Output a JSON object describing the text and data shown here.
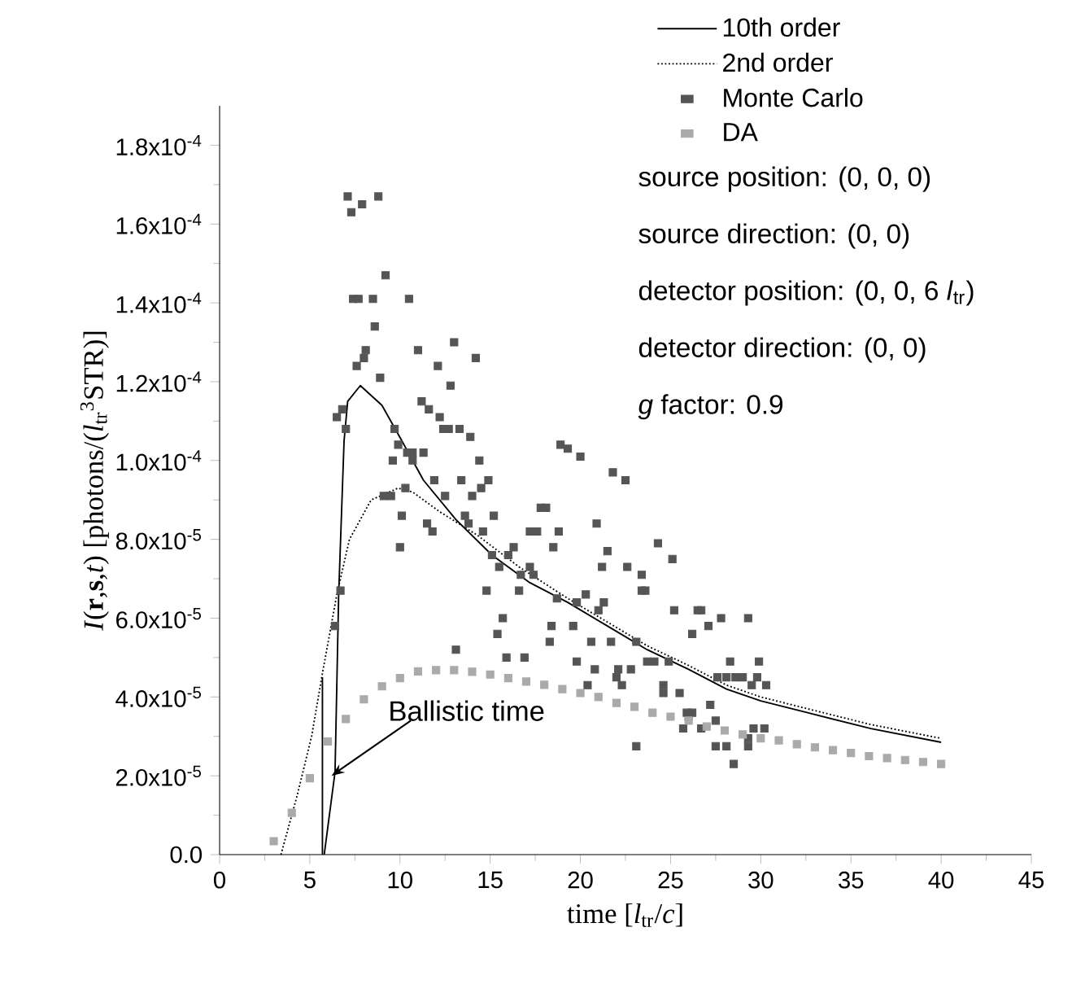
{
  "chart_data": {
    "type": "line",
    "xlabel": "time      [*l*$_{tr}$/*c*]",
    "ylabel": "*I*(**r**,**s**,*t*)   [photons/(*l*$_{tr}$$^{3}$STR)]",
    "xlim": [
      0,
      45
    ],
    "xticks": [
      0,
      5,
      10,
      15,
      20,
      25,
      30,
      35,
      40,
      45
    ],
    "ylim": [
      0,
      0.00019
    ],
    "yticks": [
      {
        "value": 0,
        "label": "0.0"
      },
      {
        "value": 2e-05,
        "label": "2.0x10$^{-5}$"
      },
      {
        "value": 4e-05,
        "label": "4.0x10$^{-5}$"
      },
      {
        "value": 6e-05,
        "label": "6.0x10$^{-5}$"
      },
      {
        "value": 8e-05,
        "label": "8.0x10$^{-5}$"
      },
      {
        "value": 0.0001,
        "label": "1.0x10$^{-4}$"
      },
      {
        "value": 0.00012,
        "label": "1.2x10$^{-4}$"
      },
      {
        "value": 0.00014,
        "label": "1.4x10$^{-4}$"
      },
      {
        "value": 0.00016,
        "label": "1.6x10$^{-4}$"
      },
      {
        "value": 0.00018,
        "label": "1.8x10$^{-4}$"
      }
    ],
    "legend": "top right",
    "series": [
      {
        "name": "10th order",
        "line_style": "solid",
        "color": "#000000",
        "x": [
          5.8,
          6.4,
          6.6,
          6.9,
          7.1,
          7.8,
          9.0,
          10.1,
          11.3,
          13.1,
          15.1,
          17.2,
          19.3,
          21.5,
          23.7,
          26,
          28.1,
          30,
          32.6,
          36.1,
          40
        ],
        "values": [
          0,
          2.1e-05,
          6.6e-05,
          0.000105,
          0.000115,
          0.000119,
          0.000114,
          0.000105,
          9.5e-05,
          8.5e-05,
          7.6e-05,
          6.9e-05,
          6.4e-05,
          5.8e-05,
          5.2e-05,
          4.7e-05,
          4.2e-05,
          3.9e-05,
          3.6e-05,
          3.2e-05,
          2.85e-05
        ]
      },
      {
        "name": "2nd order",
        "line_style": "dotted",
        "color": "#000000",
        "x": [
          3.4,
          4.3,
          5.1,
          5.7,
          6.5,
          7.2,
          8.4,
          9.9,
          10.7,
          12.2,
          14.3,
          16.6,
          19.3,
          21.5,
          23.7,
          26,
          28.1,
          30,
          32.6,
          36.1,
          40
        ],
        "values": [
          0,
          1.5e-05,
          3e-05,
          4.6e-05,
          6.6e-05,
          8e-05,
          9e-05,
          9.3e-05,
          9.2e-05,
          8.7e-05,
          8.1e-05,
          7.3e-05,
          6.5e-05,
          5.9e-05,
          5.3e-05,
          4.8e-05,
          4.3e-05,
          4e-05,
          3.7e-05,
          3.3e-05,
          2.95e-05
        ]
      },
      {
        "name": "Monte Carlo",
        "type": "scatter",
        "marker": "square",
        "color": "#555555",
        "x": [
          7.1,
          7.3,
          7.9,
          8.8,
          9.2,
          7.4,
          7.7,
          8.5,
          10.5,
          8.6,
          8.1,
          8.0,
          7.6,
          11.0,
          13.0,
          14.2,
          12.1,
          8.9,
          12.8,
          6.5,
          6.8,
          7.0,
          11.2,
          11.6,
          12.2,
          12.4,
          12.7,
          13.3,
          13.9,
          9.7,
          9.9,
          10.7,
          10.4,
          11.3,
          9.6,
          10.7,
          14.4,
          11.9,
          13.4,
          14.9,
          14.5,
          9.1,
          9.5,
          10.3,
          12.5,
          14.0,
          10.1,
          13.6,
          15.2,
          13.8,
          11.5,
          11.8,
          14.6,
          10.0,
          15.1,
          15.5,
          16.0,
          16.3,
          16.7,
          17.2,
          17.4,
          17.8,
          18.1,
          17.2,
          17.6,
          18.8,
          18.5,
          18.9,
          14.8,
          6.7,
          16.6,
          6.4,
          15.7,
          15.4,
          18.4,
          18.3,
          13.1,
          15.9,
          16.9,
          18.7,
          19.3,
          20.0,
          21.8,
          22.5,
          20.9,
          21.5,
          24.3,
          25.1,
          21.2,
          22.6,
          23.4,
          23.4,
          23.6,
          19.8,
          20.3,
          21.3,
          21.0,
          25.2,
          26.5,
          26.7,
          27.8,
          29.3,
          27.1,
          26.2,
          19.6,
          20.6,
          21.7,
          19.8,
          20.8,
          22.1,
          22.8,
          22.0,
          22.3,
          20.4,
          23.1,
          23.7,
          24.1,
          24.9,
          28.3,
          29.9,
          27.6,
          28.1,
          28.6,
          29.0,
          29.8,
          29.5,
          30.3,
          27.2,
          24.6,
          24.6,
          25.5,
          25.9,
          26.2,
          26.0,
          25.7,
          26.7,
          27.5,
          29.6,
          30.2,
          29.3,
          27.5,
          28.1,
          29.3,
          28.5,
          23.1
        ],
        "values": [
          0.000167,
          0.000163,
          0.000165,
          0.000167,
          0.000147,
          0.000141,
          0.000141,
          0.000141,
          0.000141,
          0.000134,
          0.000128,
          0.000126,
          0.000124,
          0.000128,
          0.00013,
          0.000126,
          0.000124,
          0.000121,
          0.000119,
          0.000111,
          0.000113,
          0.000108,
          0.000115,
          0.000113,
          0.000111,
          0.000108,
          0.000108,
          0.000108,
          0.000106,
          0.000108,
          0.000104,
          0.000102,
          0.000102,
          0.000102,
          0.0001,
          0.0001,
          0.0001,
          9.5e-05,
          9.5e-05,
          9.5e-05,
          9.3e-05,
          9.1e-05,
          9.1e-05,
          9.3e-05,
          9.1e-05,
          9.1e-05,
          8.6e-05,
          8.6e-05,
          8.6e-05,
          8.4e-05,
          8.4e-05,
          8.2e-05,
          8.2e-05,
          7.8e-05,
          7.6e-05,
          7.3e-05,
          7.6e-05,
          7.8e-05,
          7.1e-05,
          7.3e-05,
          7.1e-05,
          8.8e-05,
          8.8e-05,
          8.2e-05,
          8.2e-05,
          8.2e-05,
          7.8e-05,
          0.000104,
          6.7e-05,
          6.7e-05,
          6.7e-05,
          5.8e-05,
          6e-05,
          5.6e-05,
          5.8e-05,
          5.4e-05,
          5.2e-05,
          5e-05,
          5e-05,
          6.5e-05,
          0.000103,
          0.000101,
          9.7e-05,
          9.5e-05,
          8.4e-05,
          7.7e-05,
          7.9e-05,
          7.5e-05,
          7.3e-05,
          7.3e-05,
          7.1e-05,
          6.7e-05,
          6.7e-05,
          6.4e-05,
          6.6e-05,
          6.4e-05,
          6.2e-05,
          6.2e-05,
          6.2e-05,
          6.2e-05,
          6e-05,
          6e-05,
          5.8e-05,
          5.6e-05,
          5.8e-05,
          5.4e-05,
          5.4e-05,
          4.9e-05,
          4.7e-05,
          4.7e-05,
          4.7e-05,
          4.5e-05,
          4.3e-05,
          4.3e-05,
          5.4e-05,
          4.9e-05,
          4.9e-05,
          4.9e-05,
          4.9e-05,
          4.9e-05,
          4.5e-05,
          4.5e-05,
          4.5e-05,
          4.5e-05,
          4.5e-05,
          4.3e-05,
          4.3e-05,
          3.8e-05,
          4.3e-05,
          4.1e-05,
          4.1e-05,
          3.6e-05,
          3.6e-05,
          3.5e-05,
          3.2e-05,
          3.2e-05,
          3.4e-05,
          3.2e-05,
          3.2e-05,
          2.95e-05,
          2.75e-05,
          2.75e-05,
          2.75e-05,
          2.3e-05,
          2.75e-05
        ]
      },
      {
        "name": "DA",
        "type": "scatter",
        "marker": "square",
        "color": "#aaaaaa",
        "x": [
          3,
          4,
          5,
          6,
          7,
          8,
          9,
          10,
          11,
          12,
          13,
          14,
          15,
          16,
          17,
          18,
          19,
          20,
          21,
          22,
          23,
          24,
          25,
          26,
          27,
          28,
          29,
          30,
          31,
          32,
          33,
          34,
          35,
          36,
          37,
          38,
          39,
          40
        ],
        "values": [
          3.4e-06,
          1.06e-05,
          1.94e-05,
          2.87e-05,
          3.44e-05,
          3.94e-05,
          4.27e-05,
          4.48e-05,
          4.65e-05,
          4.68e-05,
          4.68e-05,
          4.64e-05,
          4.57e-05,
          4.48e-05,
          4.39e-05,
          4.31e-05,
          4.2e-05,
          4.1e-05,
          4e-05,
          3.85e-05,
          3.75e-05,
          3.6e-05,
          3.5e-05,
          3.4e-05,
          3.25e-05,
          3.15e-05,
          3.05e-05,
          2.95e-05,
          2.9e-05,
          2.8e-05,
          2.72e-05,
          2.65e-05,
          2.58e-05,
          2.5e-05,
          2.45e-05,
          2.4e-05,
          2.35e-05,
          2.3e-05
        ]
      },
      {
        "line_style": "solid",
        "color": "#000000",
        "x": [
          5.7,
          5.7
        ],
        "values": [
          0,
          4.5e-05
        ]
      }
    ],
    "annotations": [
      {
        "text": "Ballistic time",
        "x": 6.2,
        "y": 2e-05
      },
      "source position: (0, 0, 0)",
      "source direction: (0, 0)",
      "detector position: (0, 0, 6 *l*$_{tr}$)",
      "detector direction: (0, 0)",
      "*g*  factor: 0.9"
    ]
  }
}
